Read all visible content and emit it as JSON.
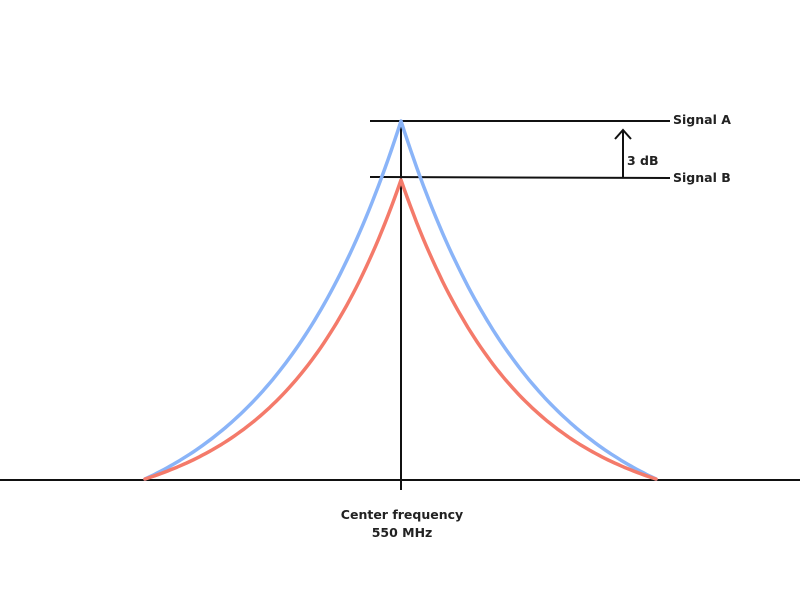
{
  "labels": {
    "signal_a": "Signal A",
    "signal_b": "Signal B",
    "difference": "3 dB",
    "center_line1": "Center frequency",
    "center_line2": "550 MHz"
  },
  "colors": {
    "signal_a": "#8ab4f8",
    "signal_b": "#f47a6a",
    "axis": "#111111"
  },
  "icons": {
    "difference_arrow": "arrow-up-icon"
  }
}
